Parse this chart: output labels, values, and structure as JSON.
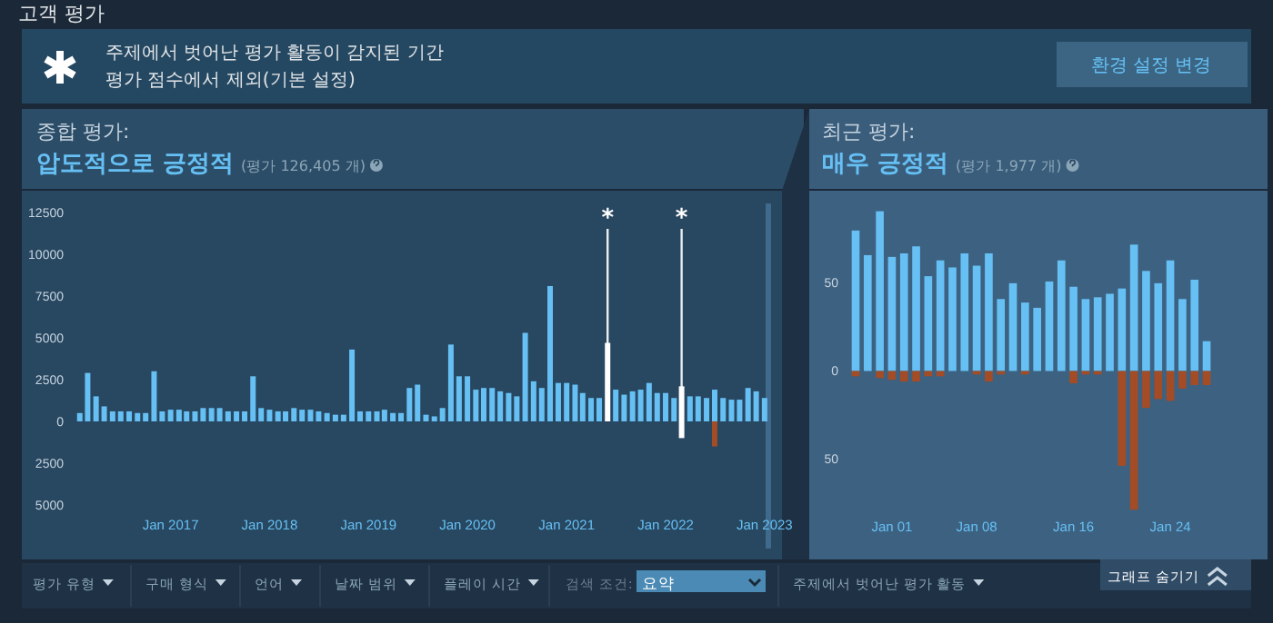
{
  "chart_data": [
    {
      "type": "bar",
      "title": "종합 평가:",
      "subtitle": "압도적으로 긍정적",
      "annotations": [
        "(평가 126,405 개)"
      ],
      "x": [
        "2016-02",
        "2016-03",
        "2016-04",
        "2016-05",
        "2016-06",
        "2016-07",
        "2016-08",
        "2016-09",
        "2016-10",
        "2016-11",
        "2016-12",
        "2017-01",
        "2017-02",
        "2017-03",
        "2017-04",
        "2017-05",
        "2017-06",
        "2017-07",
        "2017-08",
        "2017-09",
        "2017-10",
        "2017-11",
        "2017-12",
        "2018-01",
        "2018-02",
        "2018-03",
        "2018-04",
        "2018-05",
        "2018-06",
        "2018-07",
        "2018-08",
        "2018-09",
        "2018-10",
        "2018-11",
        "2018-12",
        "2019-01",
        "2019-02",
        "2019-03",
        "2019-04",
        "2019-05",
        "2019-06",
        "2019-07",
        "2019-08",
        "2019-09",
        "2019-10",
        "2019-11",
        "2019-12",
        "2020-01",
        "2020-02",
        "2020-03",
        "2020-04",
        "2020-05",
        "2020-06",
        "2020-07",
        "2020-08",
        "2020-09",
        "2020-10",
        "2020-11",
        "2020-12",
        "2021-01",
        "2021-02",
        "2021-03",
        "2021-04",
        "2021-05",
        "2021-06",
        "2021-07",
        "2021-08",
        "2021-09",
        "2021-10",
        "2021-11",
        "2021-12",
        "2022-01",
        "2022-02",
        "2022-03",
        "2022-04",
        "2022-05",
        "2022-06",
        "2022-07",
        "2022-08",
        "2022-09",
        "2022-10",
        "2022-11",
        "2022-12",
        "2023-01"
      ],
      "xlim": [
        "2016-01-06",
        "2023-01-25"
      ],
      "xticks": [
        {
          "value": "2017-01",
          "label": "Jan 2017"
        },
        {
          "value": "2018-01",
          "label": "Jan 2018"
        },
        {
          "value": "2019-01",
          "label": "Jan 2019"
        },
        {
          "value": "2020-01",
          "label": "Jan 2020"
        },
        {
          "value": "2021-01",
          "label": "Jan 2021"
        },
        {
          "value": "2022-01",
          "label": "Jan 2022"
        },
        {
          "value": "2023-01",
          "label": "Jan 2023"
        }
      ],
      "ylim": [
        -5000,
        12500
      ],
      "yticks": [
        {
          "value": -5000,
          "label": "5000"
        },
        {
          "value": -2500,
          "label": "2500"
        },
        0,
        2500,
        5000,
        7500,
        10000,
        12500
      ],
      "stacked": true,
      "series": [
        {
          "colors": [
            "#66c0f4",
            "#66c0f4",
            "#66c0f4",
            "#66c0f4",
            "#66c0f4",
            "#66c0f4",
            "#66c0f4",
            "#66c0f4",
            "#66c0f4",
            "#66c0f4",
            "#66c0f4",
            "#66c0f4",
            "#66c0f4",
            "#66c0f4",
            "#66c0f4",
            "#66c0f4",
            "#66c0f4",
            "#66c0f4",
            "#66c0f4",
            "#66c0f4",
            "#66c0f4",
            "#66c0f4",
            "#66c0f4",
            "#66c0f4",
            "#66c0f4",
            "#66c0f4",
            "#66c0f4",
            "#66c0f4",
            "#66c0f4",
            "#66c0f4",
            "#66c0f4",
            "#66c0f4",
            "#66c0f4",
            "#66c0f4",
            "#66c0f4",
            "#66c0f4",
            "#66c0f4",
            "#66c0f4",
            "#66c0f4",
            "#66c0f4",
            "#66c0f4",
            "#66c0f4",
            "#66c0f4",
            "#66c0f4",
            "#66c0f4",
            "#66c0f4",
            "#66c0f4",
            "#66c0f4",
            "#66c0f4",
            "#66c0f4",
            "#66c0f4",
            "#66c0f4",
            "#66c0f4",
            "#66c0f4",
            "#66c0f4",
            "#66c0f4",
            "#66c0f4",
            "#66c0f4",
            "#66c0f4",
            "#66c0f4",
            "#66c0f4",
            "#66c0f4",
            "#66c0f4",
            "#66c0f4",
            "#ffffff",
            "#66c0f4",
            "#66c0f4",
            "#66c0f4",
            "#66c0f4",
            "#66c0f4",
            "#66c0f4",
            "#66c0f4",
            "#66c0f4",
            "#ffffff",
            "#66c0f4",
            "#66c0f4",
            "#66c0f4",
            "#66c0f4",
            "#66c0f4",
            "#66c0f4",
            "#66c0f4",
            "#66c0f4",
            "#66c0f4",
            "#66c0f4"
          ],
          "values": [
            500,
            2900,
            1500,
            900,
            600,
            600,
            600,
            500,
            500,
            3000,
            600,
            700,
            700,
            600,
            600,
            800,
            800,
            800,
            600,
            600,
            600,
            2700,
            800,
            700,
            600,
            600,
            800,
            700,
            700,
            600,
            500,
            400,
            400,
            4300,
            600,
            600,
            600,
            700,
            500,
            500,
            2000,
            2200,
            400,
            300,
            800,
            4600,
            2700,
            2700,
            1900,
            2000,
            2000,
            1800,
            1700,
            1500,
            5300,
            2400,
            2000,
            8100,
            2300,
            2300,
            2200,
            1700,
            1400,
            1400,
            4700,
            1900,
            1600,
            1800,
            1900,
            2300,
            1700,
            1700,
            1400,
            2100,
            1500,
            1500,
            1400,
            1900,
            1400,
            1300,
            1300,
            2000,
            1800,
            1400
          ]
        },
        {
          "colors": [
            "#a34c25",
            "#a34c25",
            "#a34c25",
            "#a34c25",
            "#a34c25",
            "#a34c25",
            "#a34c25",
            "#a34c25",
            "#a34c25",
            "#a34c25",
            "#a34c25",
            "#a34c25",
            "#a34c25",
            "#a34c25",
            "#a34c25",
            "#a34c25",
            "#a34c25",
            "#a34c25",
            "#a34c25",
            "#a34c25",
            "#a34c25",
            "#a34c25",
            "#a34c25",
            "#a34c25",
            "#a34c25",
            "#a34c25",
            "#a34c25",
            "#a34c25",
            "#a34c25",
            "#a34c25",
            "#a34c25",
            "#a34c25",
            "#a34c25",
            "#a34c25",
            "#a34c25",
            "#a34c25",
            "#a34c25",
            "#a34c25",
            "#a34c25",
            "#a34c25",
            "#a34c25",
            "#a34c25",
            "#a34c25",
            "#a34c25",
            "#a34c25",
            "#a34c25",
            "#a34c25",
            "#a34c25",
            "#a34c25",
            "#a34c25",
            "#a34c25",
            "#a34c25",
            "#a34c25",
            "#a34c25",
            "#a34c25",
            "#a34c25",
            "#a34c25",
            "#a34c25",
            "#a34c25",
            "#a34c25",
            "#a34c25",
            "#a34c25",
            "#a34c25",
            "#a34c25",
            "#a34c25",
            "#a34c25",
            "#a34c25",
            "#a34c25",
            "#a34c25",
            "#a34c25",
            "#a34c25",
            "#a34c25",
            "#a34c25",
            "#ffffff",
            "#a34c25",
            "#a34c25",
            "#a34c25",
            "#a34c25",
            "#a34c25",
            "#a34c25",
            "#a34c25",
            "#a34c25",
            "#a34c25",
            "#a34c25"
          ],
          "values": [
            0,
            0,
            0,
            0,
            0,
            0,
            0,
            0,
            0,
            0,
            0,
            0,
            0,
            0,
            0,
            0,
            0,
            0,
            0,
            0,
            0,
            0,
            0,
            0,
            0,
            0,
            0,
            0,
            0,
            0,
            0,
            0,
            0,
            0,
            0,
            0,
            0,
            0,
            0,
            0,
            0,
            0,
            0,
            0,
            0,
            0,
            0,
            0,
            0,
            0,
            0,
            0,
            0,
            0,
            0,
            0,
            0,
            0,
            0,
            0,
            0,
            0,
            0,
            0,
            0,
            0,
            0,
            0,
            0,
            0,
            0,
            0,
            0,
            -1000,
            0,
            0,
            0,
            -1500,
            0,
            0,
            0,
            0,
            0,
            0
          ]
        }
      ],
      "ref_lines": [
        {
          "axis": "x",
          "value": "2021-06",
          "label": "*",
          "color": "#ffffff"
        },
        {
          "axis": "x",
          "value": "2022-03",
          "label": "*",
          "color": "#ffffff"
        }
      ]
    },
    {
      "type": "bar",
      "title": "최근 평가:",
      "subtitle": "매우 긍정적",
      "annotations": [
        "(평가 1,977 개)"
      ],
      "categories": [
        null,
        null,
        null,
        "Jan 01",
        null,
        null,
        null,
        null,
        null,
        null,
        "Jan 08",
        null,
        null,
        null,
        null,
        null,
        null,
        null,
        "Jan 16",
        null,
        null,
        null,
        null,
        null,
        null,
        null,
        "Jan 24",
        null,
        null,
        null
      ],
      "ylim": [
        -80,
        100
      ],
      "yticks": [
        {
          "value": -50,
          "label": "50"
        },
        0,
        50
      ],
      "stacked": true,
      "series": [
        {
          "color": "#66c0f4",
          "values": [
            80,
            66,
            91,
            65,
            67,
            71,
            54,
            63,
            59,
            67,
            60,
            67,
            41,
            50,
            39,
            36,
            51,
            63,
            48,
            41,
            42,
            44,
            47,
            72,
            57,
            50,
            63,
            41,
            52,
            17
          ]
        },
        {
          "color": "#a34c25",
          "values": [
            -3,
            0,
            -4,
            -5,
            -6,
            -6,
            -3,
            -3,
            0,
            0,
            -2,
            -6,
            -2,
            0,
            -2,
            0,
            0,
            0,
            -7,
            -2,
            -2,
            0,
            -54,
            -79,
            -21,
            -16,
            -17,
            -10,
            -8,
            -8
          ]
        }
      ]
    },
    {
      "type": "other",
      "title": "고객 평가",
      "annotations": [
        "주제에서 벗어난 평가 활동이 감지된 기간",
        "평가 점수에서 제외(기본 설정)",
        "환경 설정 변경",
        "평가 유형",
        "구매 형식",
        "언어",
        "날짜 범위",
        "플레이 시간",
        "검색 조건:",
        "요약",
        "주제에서 벗어난 평가 활동",
        "그래프 숨기기"
      ]
    }
  ]
}
